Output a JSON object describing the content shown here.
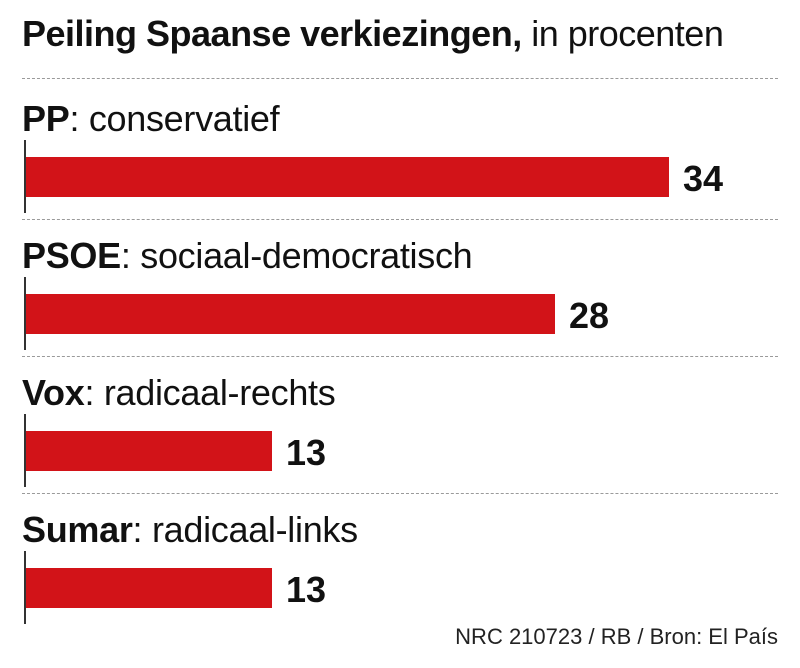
{
  "title": {
    "main": "Peiling Spaanse verkiezingen,",
    "sub": " in procenten"
  },
  "footer": {
    "source": "NRC 210723 / RB / Bron: El País"
  },
  "colors": {
    "bar": "#d21318",
    "divider": "#9a9a9a",
    "text": "#111111"
  },
  "chart_data": {
    "type": "bar",
    "orientation": "horizontal",
    "title": "Peiling Spaanse verkiezingen, in procenten",
    "categories": [
      "PP",
      "PSOE",
      "Vox",
      "Sumar"
    ],
    "descriptions": [
      "conservatief",
      "sociaal-democratisch",
      "radicaal-rechts",
      "radicaal-links"
    ],
    "values": [
      34,
      28,
      13,
      13
    ],
    "grid": false
  }
}
